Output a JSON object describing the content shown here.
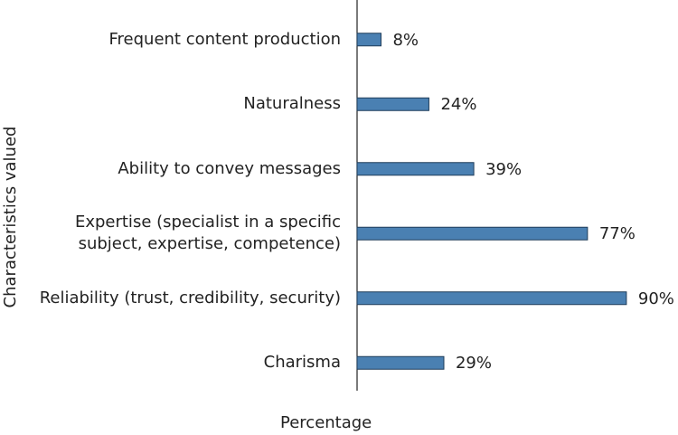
{
  "chart_data": {
    "type": "bar",
    "orientation": "horizontal",
    "x_label": "Percentage",
    "y_label": "Characteristics valued",
    "categories": [
      "Frequent content production",
      "Naturalness",
      "Ability to convey messages",
      "Expertise (specialist in a specific\nsubject, expertise, competence)",
      "Reliability (trust, credibility, security)",
      "Charisma"
    ],
    "values": [
      8,
      24,
      39,
      77,
      90,
      29
    ],
    "value_labels": [
      "8%",
      "24%",
      "39%",
      "77%",
      "90%",
      "29%"
    ],
    "color": "#4a80b2",
    "xlim": [
      0,
      100
    ]
  }
}
